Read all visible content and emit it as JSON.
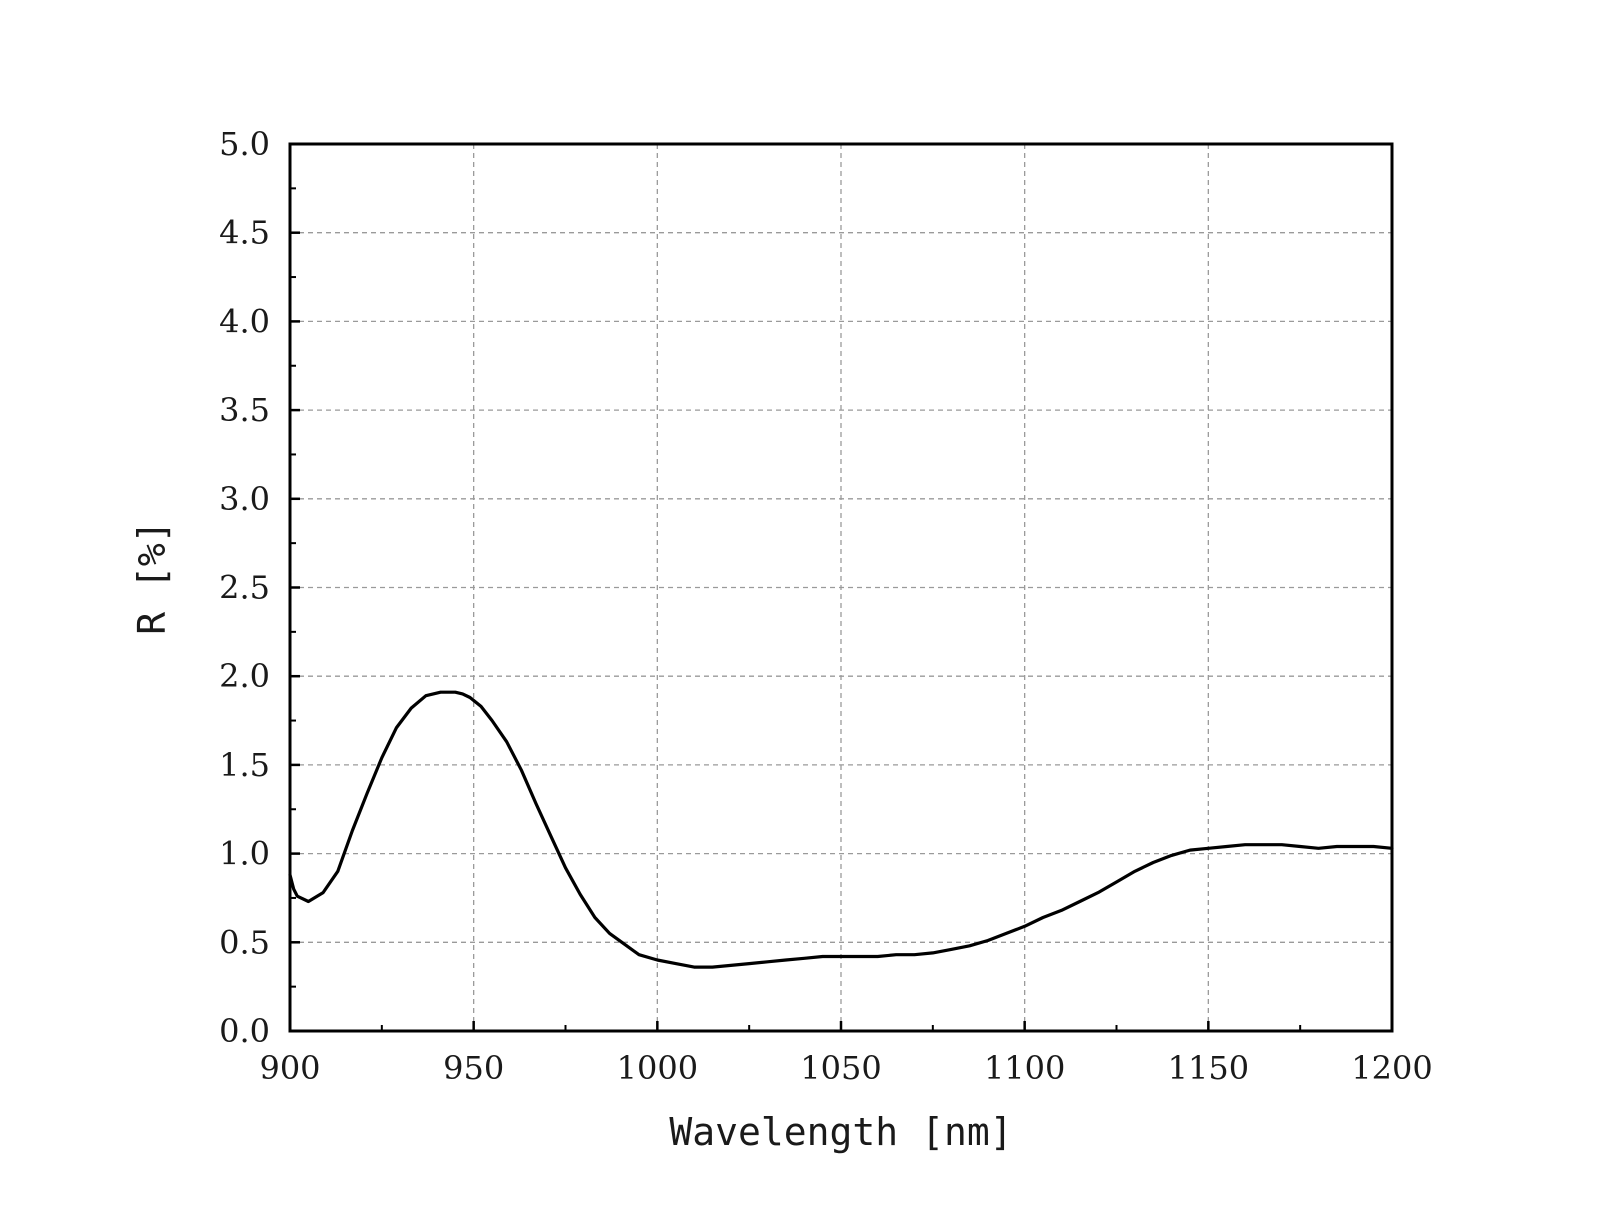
{
  "chart_data": {
    "type": "line",
    "title": "",
    "xlabel": "Wavelength [nm]",
    "ylabel": "R [%]",
    "xlim": [
      900,
      1200
    ],
    "ylim": [
      0,
      5
    ],
    "x_ticks": [
      "900",
      "950",
      "1000",
      "1050",
      "1100",
      "1150",
      "1200"
    ],
    "y_ticks": [
      "0.0",
      "0.5",
      "1.0",
      "1.5",
      "2.0",
      "2.5",
      "3.0",
      "3.5",
      "4.0",
      "4.5",
      "5.0"
    ],
    "grid": true,
    "line_color": "#000000",
    "series": [
      {
        "x": [
          900,
          901,
          902,
          905,
          909,
          913,
          917,
          921,
          925,
          929,
          933,
          937,
          941,
          945,
          947,
          949,
          952,
          955,
          959,
          963,
          967,
          971,
          975,
          979,
          983,
          987,
          991,
          995,
          1000,
          1005,
          1010,
          1015,
          1020,
          1025,
          1030,
          1035,
          1040,
          1045,
          1050,
          1055,
          1060,
          1065,
          1070,
          1075,
          1080,
          1085,
          1090,
          1095,
          1100,
          1105,
          1110,
          1115,
          1120,
          1125,
          1130,
          1135,
          1140,
          1145,
          1150,
          1155,
          1160,
          1165,
          1170,
          1175,
          1180,
          1185,
          1190,
          1195,
          1200
        ],
        "y": [
          0.88,
          0.8,
          0.76,
          0.73,
          0.78,
          0.9,
          1.13,
          1.34,
          1.54,
          1.71,
          1.82,
          1.89,
          1.91,
          1.91,
          1.9,
          1.88,
          1.83,
          1.75,
          1.63,
          1.47,
          1.28,
          1.1,
          0.92,
          0.77,
          0.64,
          0.55,
          0.49,
          0.43,
          0.4,
          0.38,
          0.36,
          0.36,
          0.37,
          0.38,
          0.39,
          0.4,
          0.41,
          0.42,
          0.42,
          0.42,
          0.42,
          0.43,
          0.43,
          0.44,
          0.46,
          0.48,
          0.51,
          0.55,
          0.59,
          0.64,
          0.68,
          0.73,
          0.78,
          0.84,
          0.9,
          0.95,
          0.99,
          1.02,
          1.03,
          1.04,
          1.05,
          1.05,
          1.05,
          1.04,
          1.03,
          1.04,
          1.04,
          1.04,
          1.03
        ]
      }
    ]
  }
}
